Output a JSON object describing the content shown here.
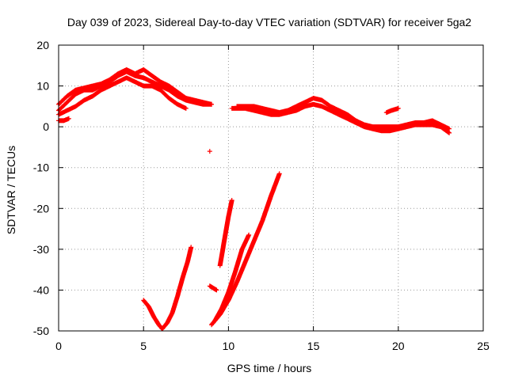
{
  "chart_data": {
    "type": "scatter",
    "title": "Day 039 of 2023, Sidereal Day-to-day VTEC variation (SDTVAR) for receiver 5ga2",
    "xlabel": "GPS time / hours",
    "ylabel": "SDTVAR / TECUs",
    "xlim": [
      0,
      25
    ],
    "ylim": [
      -50,
      20
    ],
    "xticks": [
      0,
      5,
      10,
      15,
      20,
      25
    ],
    "yticks": [
      -50,
      -40,
      -30,
      -20,
      -10,
      0,
      10,
      20
    ],
    "grid": true,
    "marker": "+",
    "series_color": "#ff0000",
    "segments": [
      {
        "name": "early-upper-a",
        "points": [
          [
            0,
            4
          ],
          [
            0.5,
            6
          ],
          [
            1,
            8
          ],
          [
            1.5,
            9
          ],
          [
            2,
            9
          ],
          [
            2.5,
            10
          ],
          [
            3,
            11
          ],
          [
            3.5,
            12.5
          ],
          [
            4,
            13.5
          ],
          [
            4.5,
            12.5
          ],
          [
            5,
            12
          ],
          [
            5.5,
            11
          ],
          [
            6,
            10
          ],
          [
            6.5,
            9
          ],
          [
            7,
            7.5
          ],
          [
            7.5,
            6.5
          ],
          [
            8,
            6
          ],
          [
            8.5,
            5.5
          ],
          [
            9,
            5.5
          ]
        ]
      },
      {
        "name": "early-upper-b",
        "points": [
          [
            0,
            5.5
          ],
          [
            0.5,
            7.5
          ],
          [
            1,
            9
          ],
          [
            1.5,
            9.5
          ],
          [
            2,
            10
          ],
          [
            2.5,
            10.5
          ],
          [
            3,
            11.5
          ],
          [
            3.5,
            13
          ],
          [
            4,
            14
          ],
          [
            4.5,
            13
          ],
          [
            5,
            14
          ],
          [
            5.5,
            12.5
          ],
          [
            6,
            11
          ],
          [
            6.5,
            10
          ],
          [
            7,
            8.5
          ],
          [
            7.5,
            7
          ],
          [
            8,
            6.5
          ],
          [
            8.5,
            6
          ],
          [
            9,
            5.5
          ]
        ]
      },
      {
        "name": "early-upper-c",
        "points": [
          [
            0,
            3
          ],
          [
            0.5,
            4
          ],
          [
            1,
            5
          ],
          [
            1.5,
            6.5
          ],
          [
            2,
            7.5
          ],
          [
            2.5,
            9
          ],
          [
            3,
            10
          ],
          [
            3.5,
            11
          ],
          [
            4,
            12
          ],
          [
            4.5,
            11
          ],
          [
            5,
            10
          ],
          [
            5.5,
            10
          ],
          [
            6,
            9
          ],
          [
            6.5,
            7
          ],
          [
            7,
            5.5
          ],
          [
            7.5,
            4.5
          ]
        ]
      },
      {
        "name": "early-upper-d",
        "points": [
          [
            0,
            1.5
          ],
          [
            0.3,
            1.5
          ],
          [
            0.6,
            2
          ]
        ]
      },
      {
        "name": "isolated-point",
        "points": [
          [
            8.9,
            -6
          ]
        ]
      },
      {
        "name": "late-upper-a",
        "points": [
          [
            10.2,
            4.5
          ],
          [
            11,
            4.5
          ],
          [
            11.5,
            4
          ],
          [
            12,
            3.5
          ],
          [
            12.5,
            3
          ],
          [
            13,
            3
          ],
          [
            13.5,
            3.5
          ],
          [
            14,
            4
          ],
          [
            14.5,
            5
          ],
          [
            15,
            5.5
          ],
          [
            15.5,
            5
          ],
          [
            16,
            4
          ],
          [
            16.5,
            3
          ],
          [
            17,
            2
          ],
          [
            17.5,
            1
          ],
          [
            18,
            0
          ],
          [
            18.5,
            -0.5
          ],
          [
            19,
            -1
          ],
          [
            19.5,
            -1
          ],
          [
            20,
            -0.5
          ],
          [
            20.5,
            0
          ],
          [
            21,
            0.5
          ],
          [
            21.5,
            0.5
          ],
          [
            22,
            0.5
          ],
          [
            22.5,
            0
          ],
          [
            23,
            -1.5
          ]
        ]
      },
      {
        "name": "late-upper-b",
        "points": [
          [
            10.5,
            5
          ],
          [
            11,
            5
          ],
          [
            11.5,
            5
          ],
          [
            12,
            4.5
          ],
          [
            12.5,
            4
          ],
          [
            13,
            3.5
          ],
          [
            13.5,
            4
          ],
          [
            14,
            5
          ],
          [
            14.5,
            6
          ],
          [
            15,
            7
          ],
          [
            15.5,
            6.5
          ],
          [
            16,
            5
          ],
          [
            16.5,
            4
          ],
          [
            17,
            3
          ],
          [
            17.5,
            1.5
          ],
          [
            18,
            0.5
          ],
          [
            18.5,
            0
          ],
          [
            19,
            0
          ],
          [
            19.5,
            0
          ],
          [
            20,
            0
          ],
          [
            20.5,
            0.5
          ],
          [
            21,
            1
          ],
          [
            21.5,
            1
          ],
          [
            22,
            1.5
          ],
          [
            22.5,
            0.5
          ],
          [
            23,
            -0.5
          ]
        ]
      },
      {
        "name": "late-upper-c",
        "points": [
          [
            19.3,
            3.5
          ],
          [
            19.6,
            4
          ],
          [
            20,
            4.5
          ]
        ]
      },
      {
        "name": "dip-curve",
        "points": [
          [
            5,
            -42.5
          ],
          [
            5.3,
            -44
          ],
          [
            5.6,
            -46.5
          ],
          [
            5.9,
            -48.5
          ],
          [
            6.1,
            -49.5
          ],
          [
            6.4,
            -48
          ],
          [
            6.7,
            -45.5
          ],
          [
            7,
            -41.5
          ],
          [
            7.3,
            -37
          ],
          [
            7.6,
            -33
          ],
          [
            7.8,
            -29.5
          ]
        ]
      },
      {
        "name": "rise-line-1",
        "points": [
          [
            9,
            -48.5
          ],
          [
            9.5,
            -46
          ],
          [
            10,
            -42.5
          ],
          [
            10.5,
            -38
          ],
          [
            11,
            -33
          ],
          [
            11.5,
            -28
          ],
          [
            12,
            -23
          ],
          [
            12.5,
            -17
          ],
          [
            13,
            -11.5
          ]
        ]
      },
      {
        "name": "rise-line-2",
        "points": [
          [
            9.2,
            -47.5
          ],
          [
            9.6,
            -44.5
          ],
          [
            10,
            -40.5
          ],
          [
            10.4,
            -35.5
          ],
          [
            10.8,
            -30
          ],
          [
            11.2,
            -26.5
          ]
        ]
      },
      {
        "name": "rise-line-3",
        "points": [
          [
            9.5,
            -34
          ],
          [
            9.75,
            -28
          ],
          [
            10,
            -22
          ],
          [
            10.2,
            -18
          ]
        ]
      },
      {
        "name": "short-segment",
        "points": [
          [
            8.9,
            -39
          ],
          [
            9.1,
            -39.5
          ],
          [
            9.3,
            -40
          ]
        ]
      }
    ]
  }
}
